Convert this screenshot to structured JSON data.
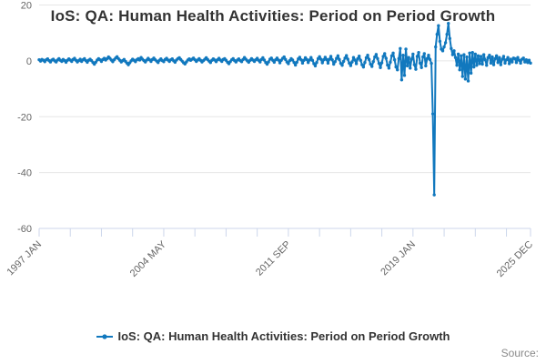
{
  "title": "IoS: QA: Human Health Activities: Period on Period Growth",
  "source_label": "Source:",
  "legend": {
    "label": "IoS: QA: Human Health Activities: Period on Period Growth",
    "marker_color": "#1178be"
  },
  "colors": {
    "line": "#1178be",
    "grid": "#e6e6e6",
    "axis": "#ccd6eb",
    "tick_label": "#666666",
    "title": "#333333",
    "source": "#8a8a8a"
  },
  "chart_data": {
    "type": "line",
    "title": "IoS: QA: Human Health Activities: Period on Period Growth",
    "xlabel": "",
    "ylabel": "",
    "ylim": [
      -60,
      20
    ],
    "grid": true,
    "legend_position": "bottom",
    "x_start": "1997 JAN",
    "x_end": "2025 DEC",
    "frequency": "monthly",
    "x_tick_labels": [
      "1997 JAN",
      "2004 MAY",
      "2011 SEP",
      "2019 JAN",
      "2025 DEC"
    ],
    "x_tick_month_indices": [
      0,
      88,
      176,
      264,
      347
    ],
    "minor_tick_step_months": 22,
    "y_ticks": [
      20,
      0,
      -20,
      -40,
      -60
    ],
    "series": [
      {
        "name": "IoS: QA: Human Health Activities: Period on Period Growth",
        "start_year": 1997,
        "values": [
          0.4,
          -0.1,
          0.5,
          0.2,
          -0.3,
          0.4,
          0.7,
          0.1,
          -0.4,
          0.3,
          0.6,
          0.0,
          -0.4,
          0.3,
          0.8,
          0.2,
          -0.2,
          0.5,
          0.1,
          -0.5,
          0.2,
          0.7,
          0.3,
          -0.2,
          0.5,
          0.9,
          0.2,
          -0.4,
          0.1,
          0.6,
          -0.2,
          0.4,
          0.8,
          0.1,
          -0.5,
          0.2,
          0.6,
          0.1,
          -0.6,
          -1.2,
          -0.5,
          0.3,
          0.8,
          0.4,
          -0.2,
          0.5,
          0.9,
          0.3,
          0.8,
          1.4,
          0.9,
          0.3,
          -0.3,
          0.4,
          1.0,
          1.5,
          0.8,
          0.2,
          -0.4,
          0.1,
          0.5,
          -0.2,
          -0.8,
          -1.4,
          -0.7,
          0.0,
          0.6,
          0.2,
          -0.3,
          0.4,
          0.8,
          0.3,
          1.2,
          0.6,
          0.1,
          -0.4,
          0.3,
          0.9,
          0.4,
          -0.2,
          0.5,
          1.0,
          0.4,
          -0.1,
          -0.6,
          0.2,
          0.7,
          0.1,
          -0.3,
          0.5,
          0.9,
          0.3,
          -0.2,
          0.4,
          0.7,
          0.0,
          -0.5,
          0.3,
          0.8,
          1.1,
          0.5,
          -0.1,
          -0.7,
          -1.1,
          -0.4,
          0.3,
          0.7,
          0.2,
          0.6,
          1.0,
          0.4,
          -0.2,
          0.3,
          0.8,
          0.2,
          -0.4,
          0.1,
          0.6,
          1.1,
          0.5,
          -0.1,
          -0.6,
          0.2,
          0.7,
          0.3,
          -0.3,
          0.4,
          0.9,
          0.3,
          -0.2,
          0.5,
          0.8,
          0.2,
          -0.5,
          -1.0,
          -0.3,
          0.4,
          0.8,
          0.1,
          -0.4,
          0.3,
          0.7,
          0.1,
          -0.3,
          0.5,
          1.2,
          0.6,
          0.0,
          -0.5,
          0.2,
          0.8,
          0.3,
          -0.2,
          0.4,
          0.9,
          0.2,
          -0.4,
          0.5,
          1.1,
          0.3,
          -0.6,
          -1.2,
          -0.4,
          0.6,
          1.0,
          0.2,
          -0.5,
          0.4,
          1.0,
          0.3,
          -0.7,
          0.2,
          0.9,
          1.4,
          0.5,
          -0.4,
          -1.0,
          0.1,
          0.8,
          0.3,
          -0.6,
          -1.5,
          -0.5,
          0.7,
          1.3,
          0.4,
          -0.8,
          0.2,
          1.1,
          0.5,
          -0.6,
          0.3,
          1.2,
          0.2,
          -1.0,
          -1.8,
          -0.6,
          0.8,
          1.5,
          0.6,
          -0.7,
          0.4,
          1.3,
          0.5,
          -0.8,
          0.6,
          1.6,
          0.4,
          -1.2,
          -0.3,
          0.9,
          1.8,
          0.5,
          -0.9,
          -1.6,
          -0.2,
          1.0,
          1.9,
          0.6,
          -0.8,
          -1.7,
          -0.4,
          1.2,
          0.3,
          -1.0,
          0.8,
          1.7,
          0.2,
          -1.4,
          -2.2,
          -0.6,
          1.1,
          2.0,
          0.5,
          -1.2,
          -2.0,
          -0.3,
          1.4,
          2.3,
          0.8,
          -0.9,
          -2.4,
          -0.7,
          1.6,
          2.6,
          0.9,
          -1.5,
          -2.6,
          -0.5,
          1.8,
          2.8,
          0.4,
          -2.2,
          -3.2,
          0.8,
          4.4,
          -6.8,
          2.0,
          -5.2,
          4.2,
          -1.8,
          1.2,
          -2.6,
          0.6,
          2.4,
          -1.4,
          -3.0,
          1.6,
          3.0,
          -0.8,
          -2.4,
          1.4,
          2.6,
          -1.8,
          0.8,
          2.0,
          0.5,
          -0.9,
          -19.0,
          -48.0,
          5.0,
          9.5,
          12.6,
          7.0,
          4.2,
          3.6,
          5.0,
          6.5,
          9.5,
          13.4,
          8.0,
          4.4,
          2.2,
          3.6,
          1.2,
          -1.6,
          2.4,
          -3.2,
          1.8,
          -5.6,
          2.2,
          -6.5,
          1.4,
          -7.2,
          2.8,
          -4.4,
          3.0,
          -2.2,
          2.4,
          -1.6,
          1.8,
          -1.0,
          1.6,
          -1.2,
          2.2,
          0.4,
          -1.6,
          1.2,
          2.0,
          -0.8,
          1.4,
          -1.4,
          0.8,
          1.8,
          -0.6,
          1.2,
          -1.4,
          0.6,
          1.6,
          -0.8,
          0.4,
          1.2,
          -1.0,
          0.6,
          -0.4,
          1.0,
          0.8,
          -0.6,
          1.2,
          0.2,
          -0.8,
          0.6,
          1.0,
          -0.4,
          0.4,
          -0.6,
          0.2,
          -0.8
        ]
      }
    ]
  }
}
